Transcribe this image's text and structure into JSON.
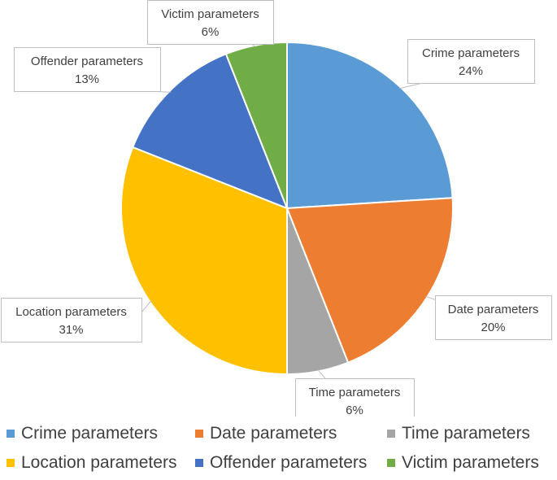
{
  "chart_data": {
    "type": "pie",
    "slices": [
      {
        "name": "Crime parameters",
        "value": 24,
        "label": "24%",
        "color": "#5B9BD5"
      },
      {
        "name": "Date parameters",
        "value": 20,
        "label": "20%",
        "color": "#ED7D31"
      },
      {
        "name": "Time parameters",
        "value": 6,
        "label": "6%",
        "color": "#A5A5A5"
      },
      {
        "name": "Location parameters",
        "value": 31,
        "label": "31%",
        "color": "#FFC000"
      },
      {
        "name": "Offender parameters",
        "value": 13,
        "label": "13%",
        "color": "#4472C4"
      },
      {
        "name": "Victim parameters",
        "value": 6,
        "label": "6%",
        "color": "#70AD47"
      }
    ],
    "legend_position": "bottom"
  }
}
